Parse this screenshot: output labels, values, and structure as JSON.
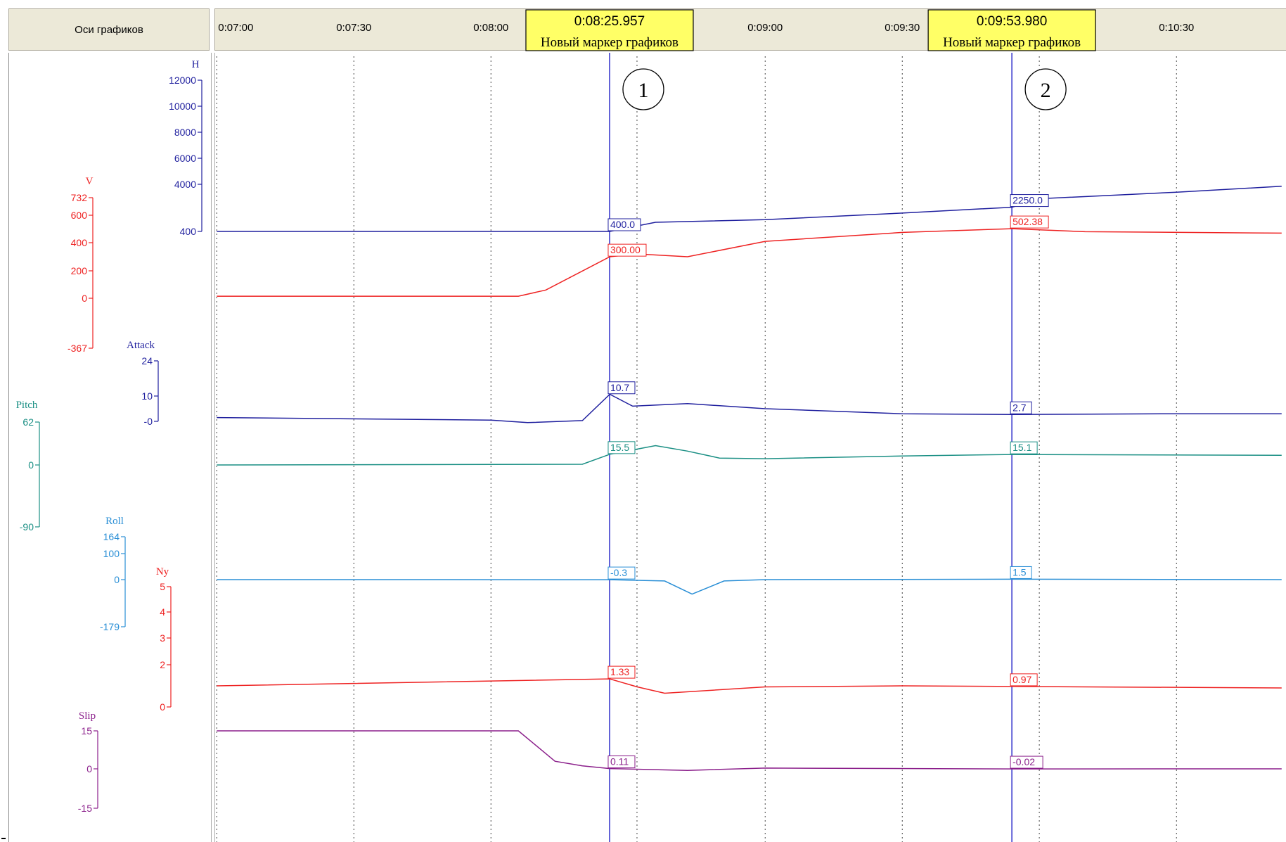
{
  "toolbar": {
    "axes_button_label": "Оси графиков"
  },
  "time_axis": {
    "ticks": [
      "0:07:00",
      "0:07:30",
      "0:08:00",
      "0:09:00",
      "0:09:30",
      "0:10:30"
    ],
    "tick_seconds": [
      420,
      450,
      480,
      540,
      570,
      630
    ]
  },
  "markers": [
    {
      "id": "1",
      "time": "0:08:25.957",
      "seconds": 505.957,
      "name": "Новый маркер графиков"
    },
    {
      "id": "2",
      "time": "0:09:53.980",
      "seconds": 593.98,
      "name": "Новый маркер графиков"
    }
  ],
  "chart_data": {
    "type": "line",
    "x_unit": "time",
    "xlim": [
      "0:06:59.5",
      "0:10:53.5"
    ],
    "grid": "vertical dotted lines at time ticks",
    "series": [
      {
        "name": "H",
        "color": "#1f1f9e",
        "axis_ticks": [
          "12000",
          "10000",
          "8000",
          "6000",
          "4000",
          "400"
        ],
        "axis_tick_values": [
          12000,
          10000,
          8000,
          6000,
          4000,
          400
        ],
        "marker_values": [
          "400.0",
          "2250.0"
        ],
        "x": [
          "0:07:00",
          "0:08:26",
          "0:08:36",
          "0:09:00",
          "0:09:30",
          "0:09:54",
          "0:10:00",
          "0:10:30",
          "0:10:53"
        ],
        "y": [
          400,
          400,
          1100,
          1300,
          1800,
          2250,
          2900,
          3400,
          3850
        ]
      },
      {
        "name": "V",
        "color": "#ee2222",
        "axis_ticks": [
          "732",
          "600",
          "400",
          "200",
          "0",
          "-367"
        ],
        "axis_tick_values": [
          732,
          600,
          400,
          200,
          0,
          -367
        ],
        "marker_values": [
          "300.00",
          "502.38"
        ],
        "x": [
          "0:07:00",
          "0:08:06",
          "0:08:12",
          "0:08:26",
          "0:08:32",
          "0:08:43",
          "0:09:00",
          "0:09:30",
          "0:09:54",
          "0:10:10",
          "0:10:53"
        ],
        "y": [
          15,
          15,
          60,
          300,
          320,
          300,
          410,
          475,
          502,
          480,
          470
        ]
      },
      {
        "name": "Attack",
        "color": "#1f1f9e",
        "axis_ticks": [
          "24",
          "10",
          "-0"
        ],
        "axis_tick_values": [
          24,
          10,
          0
        ],
        "marker_values": [
          "10.7",
          "2.7"
        ],
        "x": [
          "0:07:00",
          "0:08:00",
          "0:08:08",
          "0:08:20",
          "0:08:26",
          "0:08:31",
          "0:08:43",
          "0:09:00",
          "0:09:30",
          "0:09:54",
          "0:10:30",
          "0:10:53"
        ],
        "y": [
          1.5,
          0.5,
          -0.5,
          0.3,
          10.7,
          6,
          7,
          5,
          3,
          2.7,
          3,
          3
        ]
      },
      {
        "name": "Pitch",
        "color": "#1a8f84",
        "axis_ticks": [
          "62",
          "0",
          "-90"
        ],
        "axis_tick_values": [
          62,
          0,
          -90
        ],
        "marker_values": [
          "15.5",
          "15.1"
        ],
        "x": [
          "0:07:00",
          "0:08:20",
          "0:08:26",
          "0:08:36",
          "0:08:43",
          "0:08:50",
          "0:09:00",
          "0:09:30",
          "0:09:54",
          "0:10:53"
        ],
        "y": [
          0,
          1,
          15.5,
          28,
          20,
          10,
          9,
          13,
          15.1,
          14
        ]
      },
      {
        "name": "Roll",
        "color": "#2a8fd6",
        "axis_ticks": [
          "164",
          "100",
          "0",
          "-179"
        ],
        "axis_tick_values": [
          164,
          100,
          0,
          -179
        ],
        "marker_values": [
          "-0.3",
          "1.5"
        ],
        "x": [
          "0:07:00",
          "0:08:26",
          "0:08:38",
          "0:08:44",
          "0:08:51",
          "0:09:00",
          "0:09:54",
          "0:10:53"
        ],
        "y": [
          0,
          -0.3,
          -5,
          -55,
          -5,
          0,
          1.5,
          0
        ]
      },
      {
        "name": "Ny",
        "color": "#ee2222",
        "axis_ticks": [
          "5",
          "4",
          "3",
          "2",
          "0"
        ],
        "axis_tick_values": [
          5,
          4,
          3,
          2,
          0
        ],
        "marker_values": [
          "1.33",
          "0.97"
        ],
        "x": [
          "0:07:00",
          "0:08:26",
          "0:08:32",
          "0:08:38",
          "0:09:00",
          "0:09:30",
          "0:09:54",
          "0:10:53"
        ],
        "y": [
          1.0,
          1.33,
          0.95,
          0.65,
          0.95,
          1.0,
          0.97,
          0.9
        ]
      },
      {
        "name": "Slip",
        "color": "#8b1f8b",
        "axis_ticks": [
          "15",
          "0",
          "-15"
        ],
        "axis_tick_values": [
          15,
          0,
          -15
        ],
        "marker_values": [
          "0.11",
          "-0.02"
        ],
        "x": [
          "0:07:00",
          "0:08:06",
          "0:08:10",
          "0:08:14",
          "0:08:20",
          "0:08:26",
          "0:08:43",
          "0:09:00",
          "0:09:54",
          "0:10:53"
        ],
        "y": [
          15,
          15,
          9,
          3,
          1.2,
          0.11,
          -0.6,
          0.3,
          -0.02,
          0
        ]
      }
    ]
  }
}
